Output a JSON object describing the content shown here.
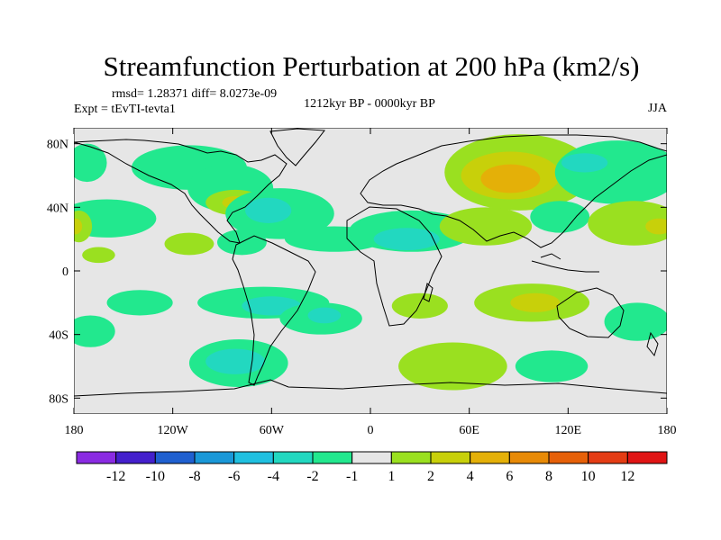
{
  "chart_data": {
    "type": "heatmap",
    "title": "Streamfunction Perturbation at 200 hPa (km2/s)",
    "left_annotations": [
      "rmsd= 1.28371 diff= 8.0273e-09",
      "Expt = tEvTI-tevta1"
    ],
    "center_annotation": "1212kyr BP - 0000kyr BP",
    "right_annotation": "JJA",
    "xlim": [
      -180,
      180
    ],
    "ylim": [
      -90,
      90
    ],
    "x_ticks": [
      {
        "value": -180,
        "label": "180"
      },
      {
        "value": -120,
        "label": "120W"
      },
      {
        "value": -60,
        "label": "60W"
      },
      {
        "value": 0,
        "label": "0"
      },
      {
        "value": 60,
        "label": "60E"
      },
      {
        "value": 120,
        "label": "120E"
      },
      {
        "value": 180,
        "label": "180"
      }
    ],
    "y_ticks": [
      {
        "value": 80,
        "label": "80N"
      },
      {
        "value": 40,
        "label": "40N"
      },
      {
        "value": 0,
        "label": "0"
      },
      {
        "value": -40,
        "label": "40S"
      },
      {
        "value": -80,
        "label": "80S"
      }
    ],
    "colorbar": {
      "levels": [
        -12,
        -10,
        -8,
        -6,
        -4,
        -2,
        -1,
        1,
        2,
        4,
        6,
        8,
        10,
        12
      ],
      "labels": [
        "-12",
        "-10",
        "-8",
        "-6",
        "-4",
        "-2",
        "-1",
        "1",
        "2",
        "4",
        "6",
        "8",
        "10",
        "12"
      ],
      "colors": [
        "#8a2be2",
        "#4420cc",
        "#2060d0",
        "#1a98d8",
        "#20c0e0",
        "#22d8c0",
        "#22e88e",
        "#e6e6e6",
        "#9ae020",
        "#c8d00a",
        "#e4b008",
        "#e88a06",
        "#e66008",
        "#e43c14",
        "#e01414"
      ]
    },
    "regions": [
      {
        "bin": 6,
        "lon": -172,
        "lat": 68,
        "rx": 12,
        "ry": 12
      },
      {
        "bin": 6,
        "lon": -110,
        "lat": 65,
        "rx": 35,
        "ry": 14
      },
      {
        "bin": 6,
        "lon": -85,
        "lat": 52,
        "rx": 26,
        "ry": 15
      },
      {
        "bin": 8,
        "lon": -82,
        "lat": 43,
        "rx": 18,
        "ry": 8
      },
      {
        "bin": 9,
        "lon": -82,
        "lat": 43,
        "rx": 8,
        "ry": 4
      },
      {
        "bin": 6,
        "lon": -55,
        "lat": 36,
        "rx": 33,
        "ry": 16
      },
      {
        "bin": 5,
        "lon": -62,
        "lat": 38,
        "rx": 14,
        "ry": 8
      },
      {
        "bin": 6,
        "lon": -160,
        "lat": 33,
        "rx": 30,
        "ry": 12
      },
      {
        "bin": 8,
        "lon": -177,
        "lat": 28,
        "rx": 8,
        "ry": 10
      },
      {
        "bin": 9,
        "lon": -179,
        "lat": 28,
        "rx": 4,
        "ry": 5
      },
      {
        "bin": 8,
        "lon": -110,
        "lat": 17,
        "rx": 15,
        "ry": 7
      },
      {
        "bin": 8,
        "lon": -165,
        "lat": 10,
        "rx": 10,
        "ry": 5
      },
      {
        "bin": 6,
        "lon": -78,
        "lat": 18,
        "rx": 15,
        "ry": 8
      },
      {
        "bin": 6,
        "lon": -22,
        "lat": 20,
        "rx": 30,
        "ry": 8
      },
      {
        "bin": 6,
        "lon": 25,
        "lat": 25,
        "rx": 38,
        "ry": 13
      },
      {
        "bin": 5,
        "lon": 22,
        "lat": 20,
        "rx": 20,
        "ry": 7
      },
      {
        "bin": 8,
        "lon": 90,
        "lat": 62,
        "rx": 45,
        "ry": 24
      },
      {
        "bin": 9,
        "lon": 85,
        "lat": 60,
        "rx": 30,
        "ry": 15
      },
      {
        "bin": 10,
        "lon": 85,
        "lat": 58,
        "rx": 18,
        "ry": 9
      },
      {
        "bin": 6,
        "lon": 150,
        "lat": 62,
        "rx": 38,
        "ry": 20
      },
      {
        "bin": 5,
        "lon": 130,
        "lat": 68,
        "rx": 14,
        "ry": 6
      },
      {
        "bin": 8,
        "lon": 70,
        "lat": 28,
        "rx": 28,
        "ry": 12
      },
      {
        "bin": 6,
        "lon": 115,
        "lat": 34,
        "rx": 18,
        "ry": 10
      },
      {
        "bin": 8,
        "lon": 160,
        "lat": 30,
        "rx": 28,
        "ry": 14
      },
      {
        "bin": 9,
        "lon": 175,
        "lat": 28,
        "rx": 8,
        "ry": 5
      },
      {
        "bin": 6,
        "lon": -65,
        "lat": -20,
        "rx": 40,
        "ry": 10
      },
      {
        "bin": 5,
        "lon": -60,
        "lat": -22,
        "rx": 18,
        "ry": 6
      },
      {
        "bin": 6,
        "lon": -140,
        "lat": -20,
        "rx": 20,
        "ry": 8
      },
      {
        "bin": 6,
        "lon": -30,
        "lat": -30,
        "rx": 25,
        "ry": 10
      },
      {
        "bin": 5,
        "lon": -28,
        "lat": -28,
        "rx": 10,
        "ry": 5
      },
      {
        "bin": 6,
        "lon": -170,
        "lat": -38,
        "rx": 15,
        "ry": 10
      },
      {
        "bin": 6,
        "lon": -80,
        "lat": -58,
        "rx": 30,
        "ry": 15
      },
      {
        "bin": 5,
        "lon": -82,
        "lat": -57,
        "rx": 18,
        "ry": 8
      },
      {
        "bin": 8,
        "lon": 30,
        "lat": -22,
        "rx": 17,
        "ry": 8
      },
      {
        "bin": 8,
        "lon": 98,
        "lat": -20,
        "rx": 35,
        "ry": 12
      },
      {
        "bin": 9,
        "lon": 100,
        "lat": -20,
        "rx": 15,
        "ry": 6
      },
      {
        "bin": 6,
        "lon": 162,
        "lat": -32,
        "rx": 20,
        "ry": 12
      },
      {
        "bin": 8,
        "lon": 50,
        "lat": -60,
        "rx": 33,
        "ry": 15
      },
      {
        "bin": 6,
        "lon": 110,
        "lat": -60,
        "rx": 22,
        "ry": 10
      }
    ]
  }
}
